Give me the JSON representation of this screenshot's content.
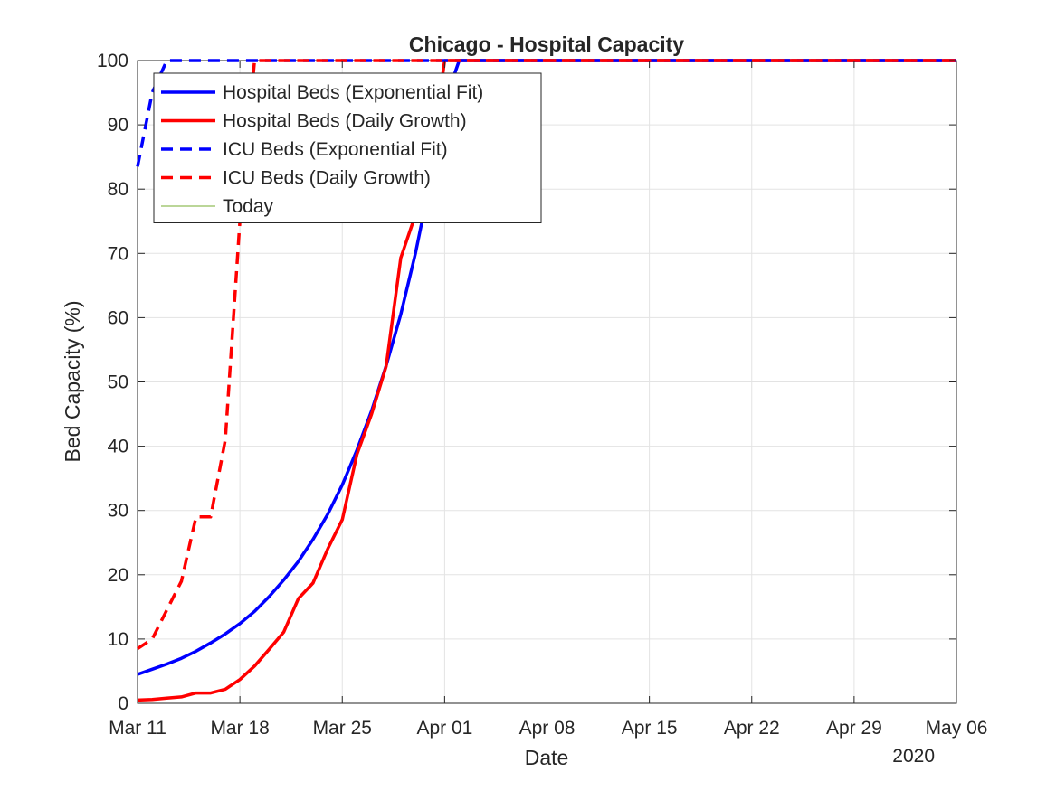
{
  "chart_data": {
    "type": "line",
    "title": "Chicago - Hospital Capacity",
    "xlabel": "Date",
    "ylabel": "Bed Capacity (%)",
    "x_secondary_label": "2020",
    "x_unit": "day",
    "x_ticks": [
      "Mar 11",
      "Mar 18",
      "Mar 25",
      "Apr 01",
      "Apr 08",
      "Apr 15",
      "Apr 22",
      "Apr 29",
      "May 06"
    ],
    "x_range": [
      "2020-03-11",
      "2020-05-06"
    ],
    "y_ticks": [
      0,
      10,
      20,
      30,
      40,
      50,
      60,
      70,
      80,
      90,
      100
    ],
    "ylim": [
      0,
      100
    ],
    "grid": true,
    "legend_position": "top-left",
    "series": [
      {
        "name": "Hospital Beds (Exponential Fit)",
        "color": "#0000ff",
        "style": "solid",
        "x": [
          "2020-03-11",
          "2020-03-12",
          "2020-03-13",
          "2020-03-14",
          "2020-03-15",
          "2020-03-16",
          "2020-03-17",
          "2020-03-18",
          "2020-03-19",
          "2020-03-20",
          "2020-03-21",
          "2020-03-22",
          "2020-03-23",
          "2020-03-24",
          "2020-03-25",
          "2020-03-26",
          "2020-03-27",
          "2020-03-28",
          "2020-03-29",
          "2020-03-30",
          "2020-03-31",
          "2020-04-01",
          "2020-04-02",
          "2020-05-06"
        ],
        "y": [
          4.5,
          5.3,
          6.1,
          7.0,
          8.1,
          9.4,
          10.8,
          12.4,
          14.3,
          16.6,
          19.2,
          22.1,
          25.5,
          29.4,
          34.0,
          39.4,
          45.5,
          52.5,
          60.5,
          70.0,
          81.0,
          93.5,
          100,
          100
        ]
      },
      {
        "name": "Hospital Beds (Daily Growth)",
        "color": "#ff0000",
        "style": "solid",
        "x": [
          "2020-03-11",
          "2020-03-12",
          "2020-03-13",
          "2020-03-14",
          "2020-03-15",
          "2020-03-16",
          "2020-03-17",
          "2020-03-18",
          "2020-03-19",
          "2020-03-20",
          "2020-03-21",
          "2020-03-22",
          "2020-03-23",
          "2020-03-24",
          "2020-03-25",
          "2020-03-26",
          "2020-03-27",
          "2020-03-28",
          "2020-03-29",
          "2020-03-30",
          "2020-03-31",
          "2020-04-01",
          "2020-05-06"
        ],
        "y": [
          0.5,
          0.6,
          0.8,
          1.0,
          1.6,
          1.6,
          2.2,
          3.7,
          5.8,
          8.4,
          11.1,
          16.3,
          18.7,
          24.0,
          28.6,
          38.7,
          45.0,
          52.4,
          69.3,
          76.0,
          84.0,
          100,
          100
        ]
      },
      {
        "name": "ICU Beds (Exponential Fit)",
        "color": "#0000ff",
        "style": "dashed",
        "x": [
          "2020-03-11",
          "2020-03-12",
          "2020-03-13",
          "2020-05-06"
        ],
        "y": [
          83.5,
          95.0,
          100,
          100
        ]
      },
      {
        "name": "ICU Beds (Daily Growth)",
        "color": "#ff0000",
        "style": "dashed",
        "x": [
          "2020-03-11",
          "2020-03-12",
          "2020-03-13",
          "2020-03-14",
          "2020-03-15",
          "2020-03-16",
          "2020-03-17",
          "2020-03-18",
          "2020-03-19",
          "2020-05-06"
        ],
        "y": [
          8.5,
          10.0,
          14.5,
          19.0,
          29.0,
          29.0,
          41.0,
          75.0,
          100,
          100
        ]
      },
      {
        "name": "Today",
        "color": "#77ac30",
        "style": "vertical",
        "x": [
          "2020-04-08",
          "2020-04-08"
        ],
        "y": [
          0,
          100
        ]
      }
    ]
  }
}
